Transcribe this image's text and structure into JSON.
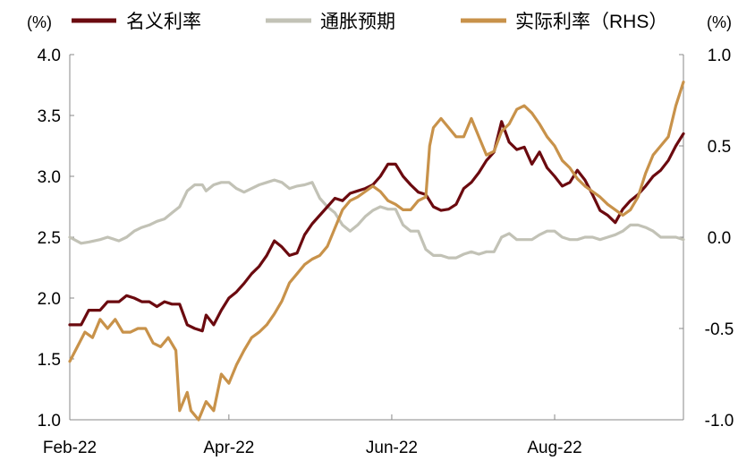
{
  "chart_data": {
    "type": "line",
    "left_unit": "(%)",
    "right_unit": "(%)",
    "x_ticks": [
      {
        "label": "Feb-22",
        "x": 0
      },
      {
        "label": "Apr-22",
        "x": 42
      },
      {
        "label": "Jun-22",
        "x": 85
      },
      {
        "label": "Aug-22",
        "x": 128
      }
    ],
    "x_range": [
      0,
      155
    ],
    "y_left": {
      "range": [
        1.0,
        4.0
      ],
      "ticks": [
        "1.0",
        "1.5",
        "2.0",
        "2.5",
        "3.0",
        "3.5",
        "4.0"
      ]
    },
    "y_right": {
      "range": [
        -1.0,
        1.0
      ],
      "ticks": [
        "-1.0",
        "-0.5",
        "0.0",
        "0.5",
        "1.0"
      ]
    },
    "series": [
      {
        "name": "名义利率",
        "axis": "left",
        "color": "#6b0a0f",
        "points": [
          [
            0,
            1.78
          ],
          [
            3,
            1.78
          ],
          [
            5,
            1.9
          ],
          [
            8,
            1.9
          ],
          [
            10,
            1.97
          ],
          [
            13,
            1.97
          ],
          [
            15,
            2.02
          ],
          [
            17,
            2.0
          ],
          [
            19,
            1.97
          ],
          [
            21,
            1.97
          ],
          [
            23,
            1.93
          ],
          [
            25,
            1.97
          ],
          [
            27,
            1.95
          ],
          [
            29,
            1.95
          ],
          [
            31,
            1.78
          ],
          [
            33,
            1.75
          ],
          [
            35,
            1.73
          ],
          [
            36,
            1.86
          ],
          [
            38,
            1.78
          ],
          [
            40,
            1.9
          ],
          [
            42,
            2.0
          ],
          [
            44,
            2.05
          ],
          [
            46,
            2.12
          ],
          [
            48,
            2.2
          ],
          [
            50,
            2.26
          ],
          [
            52,
            2.35
          ],
          [
            54,
            2.47
          ],
          [
            56,
            2.42
          ],
          [
            58,
            2.35
          ],
          [
            60,
            2.37
          ],
          [
            62,
            2.52
          ],
          [
            64,
            2.61
          ],
          [
            66,
            2.68
          ],
          [
            68,
            2.75
          ],
          [
            70,
            2.82
          ],
          [
            72,
            2.8
          ],
          [
            74,
            2.86
          ],
          [
            76,
            2.88
          ],
          [
            78,
            2.9
          ],
          [
            80,
            2.93
          ],
          [
            82,
            3.0
          ],
          [
            84,
            3.1
          ],
          [
            86,
            3.1
          ],
          [
            88,
            3.0
          ],
          [
            90,
            2.93
          ],
          [
            92,
            2.87
          ],
          [
            94,
            2.85
          ],
          [
            96,
            2.75
          ],
          [
            98,
            2.72
          ],
          [
            100,
            2.73
          ],
          [
            102,
            2.77
          ],
          [
            104,
            2.9
          ],
          [
            106,
            2.95
          ],
          [
            108,
            3.03
          ],
          [
            110,
            3.13
          ],
          [
            112,
            3.2
          ],
          [
            114,
            3.45
          ],
          [
            116,
            3.28
          ],
          [
            118,
            3.22
          ],
          [
            120,
            3.24
          ],
          [
            122,
            3.1
          ],
          [
            124,
            3.2
          ],
          [
            126,
            3.07
          ],
          [
            128,
            3.0
          ],
          [
            130,
            2.92
          ],
          [
            132,
            2.95
          ],
          [
            134,
            3.05
          ],
          [
            136,
            2.97
          ],
          [
            138,
            2.85
          ],
          [
            140,
            2.72
          ],
          [
            142,
            2.68
          ],
          [
            144,
            2.62
          ],
          [
            146,
            2.73
          ],
          [
            148,
            2.8
          ],
          [
            150,
            2.85
          ],
          [
            152,
            2.92
          ],
          [
            154,
            3.0
          ],
          [
            156,
            3.05
          ],
          [
            158,
            3.13
          ],
          [
            160,
            3.25
          ],
          [
            162,
            3.35
          ]
        ]
      },
      {
        "name": "通胀预期",
        "axis": "left",
        "color": "#c2c2b6",
        "points": [
          [
            0,
            2.5
          ],
          [
            3,
            2.45
          ],
          [
            5,
            2.46
          ],
          [
            8,
            2.48
          ],
          [
            10,
            2.5
          ],
          [
            13,
            2.47
          ],
          [
            15,
            2.5
          ],
          [
            17,
            2.55
          ],
          [
            19,
            2.58
          ],
          [
            21,
            2.6
          ],
          [
            23,
            2.63
          ],
          [
            25,
            2.65
          ],
          [
            27,
            2.7
          ],
          [
            29,
            2.75
          ],
          [
            31,
            2.88
          ],
          [
            33,
            2.93
          ],
          [
            35,
            2.93
          ],
          [
            36,
            2.88
          ],
          [
            38,
            2.93
          ],
          [
            40,
            2.95
          ],
          [
            42,
            2.95
          ],
          [
            44,
            2.9
          ],
          [
            46,
            2.87
          ],
          [
            48,
            2.9
          ],
          [
            50,
            2.93
          ],
          [
            52,
            2.95
          ],
          [
            54,
            2.97
          ],
          [
            56,
            2.95
          ],
          [
            58,
            2.9
          ],
          [
            60,
            2.92
          ],
          [
            62,
            2.93
          ],
          [
            64,
            2.95
          ],
          [
            66,
            2.82
          ],
          [
            68,
            2.75
          ],
          [
            70,
            2.7
          ],
          [
            72,
            2.6
          ],
          [
            74,
            2.55
          ],
          [
            76,
            2.6
          ],
          [
            78,
            2.67
          ],
          [
            80,
            2.72
          ],
          [
            82,
            2.75
          ],
          [
            84,
            2.73
          ],
          [
            86,
            2.73
          ],
          [
            88,
            2.6
          ],
          [
            90,
            2.55
          ],
          [
            92,
            2.55
          ],
          [
            94,
            2.4
          ],
          [
            96,
            2.35
          ],
          [
            98,
            2.35
          ],
          [
            100,
            2.33
          ],
          [
            102,
            2.33
          ],
          [
            104,
            2.36
          ],
          [
            106,
            2.38
          ],
          [
            108,
            2.36
          ],
          [
            110,
            2.38
          ],
          [
            112,
            2.38
          ],
          [
            114,
            2.5
          ],
          [
            116,
            2.53
          ],
          [
            118,
            2.48
          ],
          [
            120,
            2.48
          ],
          [
            122,
            2.48
          ],
          [
            124,
            2.52
          ],
          [
            126,
            2.55
          ],
          [
            128,
            2.55
          ],
          [
            130,
            2.5
          ],
          [
            132,
            2.48
          ],
          [
            134,
            2.48
          ],
          [
            136,
            2.5
          ],
          [
            138,
            2.5
          ],
          [
            140,
            2.48
          ],
          [
            142,
            2.5
          ],
          [
            144,
            2.52
          ],
          [
            146,
            2.55
          ],
          [
            148,
            2.6
          ],
          [
            150,
            2.6
          ],
          [
            152,
            2.58
          ],
          [
            154,
            2.55
          ],
          [
            156,
            2.5
          ],
          [
            158,
            2.5
          ],
          [
            160,
            2.5
          ],
          [
            162,
            2.48
          ]
        ]
      },
      {
        "name": "实际利率（RHS）",
        "axis": "right",
        "color": "#c8924a",
        "points": [
          [
            0,
            -0.68
          ],
          [
            2,
            -0.6
          ],
          [
            4,
            -0.52
          ],
          [
            6,
            -0.55
          ],
          [
            8,
            -0.45
          ],
          [
            10,
            -0.5
          ],
          [
            12,
            -0.45
          ],
          [
            14,
            -0.52
          ],
          [
            16,
            -0.52
          ],
          [
            18,
            -0.5
          ],
          [
            20,
            -0.5
          ],
          [
            22,
            -0.58
          ],
          [
            24,
            -0.6
          ],
          [
            26,
            -0.55
          ],
          [
            28,
            -0.62
          ],
          [
            29,
            -0.95
          ],
          [
            30,
            -0.9
          ],
          [
            31,
            -0.85
          ],
          [
            32,
            -0.95
          ],
          [
            34,
            -1.0
          ],
          [
            36,
            -0.9
          ],
          [
            38,
            -0.95
          ],
          [
            40,
            -0.75
          ],
          [
            42,
            -0.8
          ],
          [
            44,
            -0.7
          ],
          [
            46,
            -0.62
          ],
          [
            48,
            -0.55
          ],
          [
            50,
            -0.52
          ],
          [
            52,
            -0.48
          ],
          [
            54,
            -0.42
          ],
          [
            56,
            -0.35
          ],
          [
            58,
            -0.25
          ],
          [
            60,
            -0.2
          ],
          [
            62,
            -0.15
          ],
          [
            64,
            -0.12
          ],
          [
            66,
            -0.1
          ],
          [
            68,
            -0.05
          ],
          [
            70,
            0.05
          ],
          [
            72,
            0.15
          ],
          [
            74,
            0.2
          ],
          [
            76,
            0.22
          ],
          [
            78,
            0.25
          ],
          [
            80,
            0.28
          ],
          [
            82,
            0.25
          ],
          [
            84,
            0.2
          ],
          [
            86,
            0.18
          ],
          [
            88,
            0.15
          ],
          [
            90,
            0.15
          ],
          [
            92,
            0.2
          ],
          [
            94,
            0.22
          ],
          [
            95,
            0.5
          ],
          [
            96,
            0.6
          ],
          [
            98,
            0.65
          ],
          [
            100,
            0.6
          ],
          [
            102,
            0.55
          ],
          [
            104,
            0.55
          ],
          [
            106,
            0.65
          ],
          [
            108,
            0.55
          ],
          [
            110,
            0.45
          ],
          [
            112,
            0.47
          ],
          [
            114,
            0.58
          ],
          [
            116,
            0.62
          ],
          [
            118,
            0.7
          ],
          [
            120,
            0.72
          ],
          [
            122,
            0.68
          ],
          [
            124,
            0.62
          ],
          [
            126,
            0.55
          ],
          [
            128,
            0.5
          ],
          [
            130,
            0.42
          ],
          [
            132,
            0.38
          ],
          [
            134,
            0.32
          ],
          [
            136,
            0.28
          ],
          [
            138,
            0.25
          ],
          [
            140,
            0.22
          ],
          [
            142,
            0.18
          ],
          [
            144,
            0.15
          ],
          [
            146,
            0.12
          ],
          [
            148,
            0.15
          ],
          [
            150,
            0.22
          ],
          [
            152,
            0.35
          ],
          [
            154,
            0.45
          ],
          [
            156,
            0.5
          ],
          [
            158,
            0.55
          ],
          [
            160,
            0.72
          ],
          [
            162,
            0.85
          ]
        ]
      }
    ]
  }
}
